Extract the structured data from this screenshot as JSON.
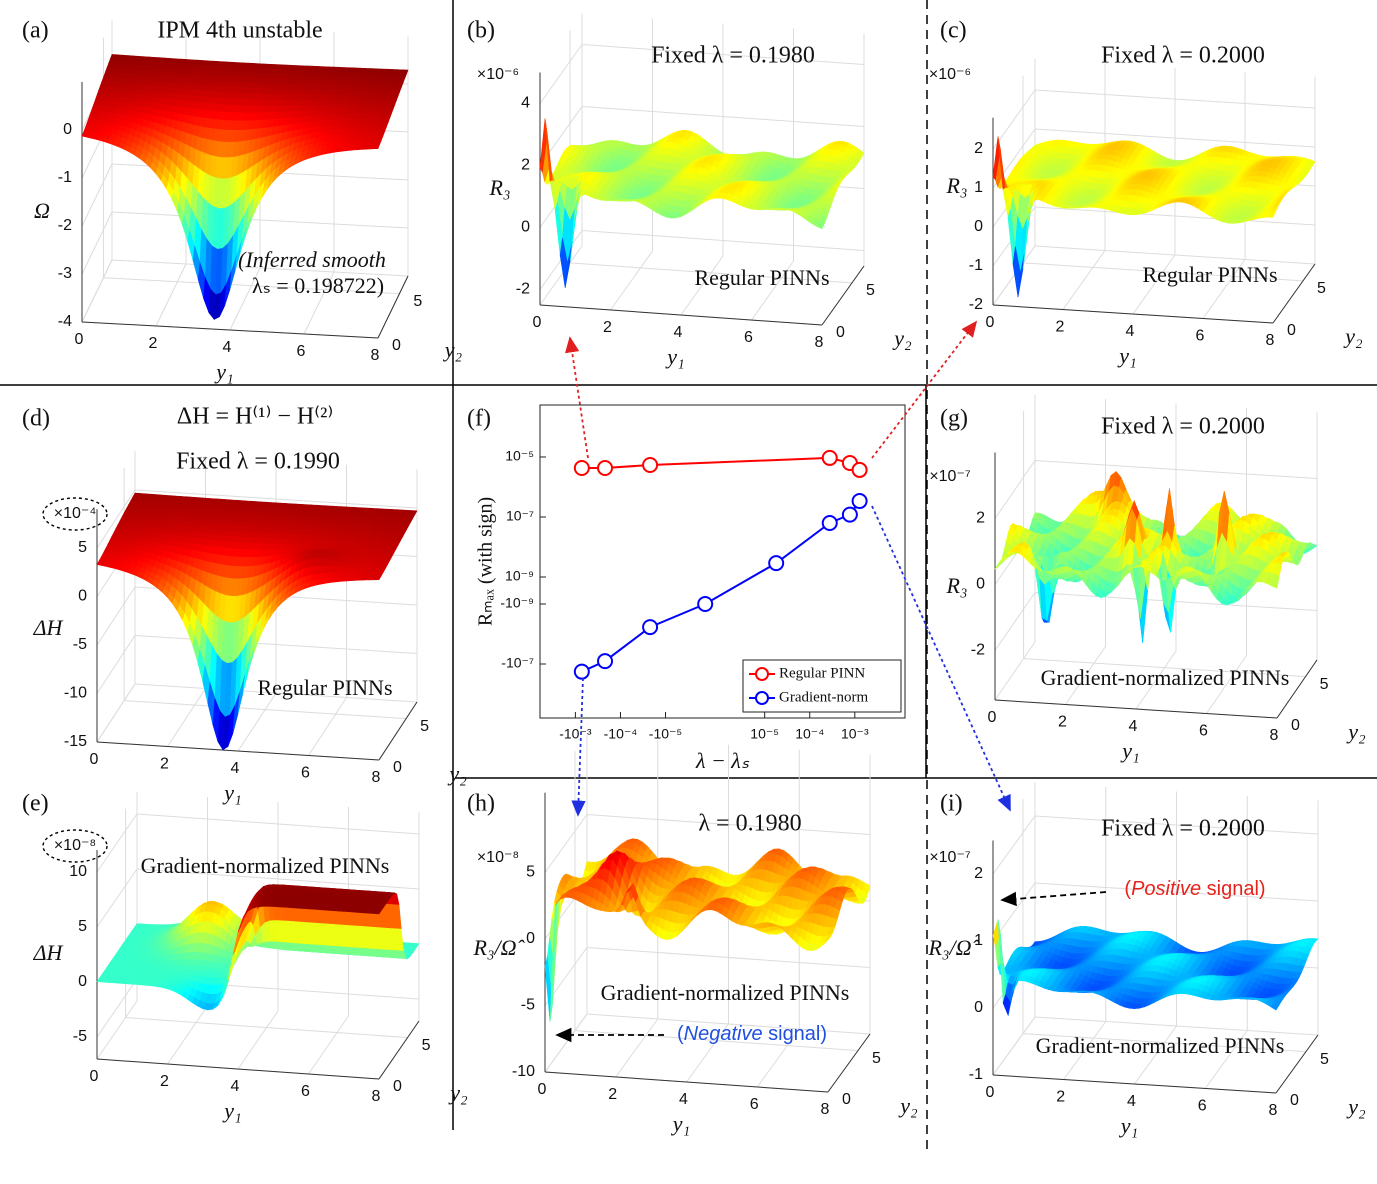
{
  "chart_data": [
    {
      "type": "surface3d",
      "panel": "(a)",
      "title": "IPM 4th unstable",
      "zlabel": "Ω",
      "xlabel": "y₁",
      "ylabel": "y₂",
      "xlim": [
        0,
        8
      ],
      "xticks": [
        0,
        2,
        4,
        6,
        8
      ],
      "ylim": [
        0,
        7
      ],
      "yticks": [
        0,
        5
      ],
      "zlim": [
        -4,
        1
      ],
      "zticks": [
        -4,
        -3,
        -2,
        -1,
        0
      ],
      "annotations": [
        "(Inferred smooth",
        "λₛ = 0.198722)"
      ],
      "colormap": "jet",
      "grid": true
    },
    {
      "type": "surface3d",
      "panel": "(b)",
      "title": "Fixed  λ = 0.1980",
      "exponent": "×10⁻⁶",
      "zlabel": "R₃",
      "xlabel": "y₁",
      "ylabel": "y₂",
      "xlim": [
        0,
        8
      ],
      "xticks": [
        0,
        2,
        4,
        6,
        8
      ],
      "ylim": [
        0,
        7
      ],
      "yticks": [
        0,
        5
      ],
      "zlim": [
        -2.5,
        5
      ],
      "zticks": [
        -2,
        0,
        2,
        4
      ],
      "annotations": [
        "Regular PINNs"
      ],
      "colormap": "jet",
      "grid": true
    },
    {
      "type": "surface3d",
      "panel": "(c)",
      "title": "Fixed  λ = 0.2000",
      "exponent": "×10⁻⁶",
      "zlabel": "R₃",
      "xlabel": "y₁",
      "ylabel": "y₂",
      "xlim": [
        0,
        8
      ],
      "xticks": [
        0,
        2,
        4,
        6,
        8
      ],
      "ylim": [
        0,
        7
      ],
      "yticks": [
        0,
        5
      ],
      "zlim": [
        -2,
        2.8
      ],
      "zticks": [
        -2,
        -1,
        0,
        1,
        2
      ],
      "annotations": [
        "Regular PINNs"
      ],
      "colormap": "jet",
      "grid": true
    },
    {
      "type": "surface3d",
      "panel": "(d)",
      "title": "ΔH = H⁽¹⁾ − H⁽²⁾",
      "subtitle": "Fixed  λ = 0.1990",
      "exponent": "×10⁻⁴",
      "zlabel": "ΔH",
      "xlabel": "y₁",
      "ylabel": "y₂",
      "xlim": [
        0,
        8
      ],
      "xticks": [
        0,
        2,
        4,
        6,
        8
      ],
      "ylim": [
        0,
        7
      ],
      "yticks": [
        0,
        5
      ],
      "zlim": [
        -15,
        9
      ],
      "zticks": [
        -15,
        -10,
        -5,
        0,
        5
      ],
      "annotations": [
        "Regular PINNs"
      ],
      "colormap": "jet",
      "grid": true
    },
    {
      "type": "surface3d",
      "panel": "(e)",
      "exponent": "×10⁻⁸",
      "zlabel": "ΔH",
      "xlabel": "y₁",
      "ylabel": "y₂",
      "xlim": [
        0,
        8
      ],
      "xticks": [
        0,
        2,
        4,
        6,
        8
      ],
      "ylim": [
        0,
        7
      ],
      "yticks": [
        0,
        5
      ],
      "zlim": [
        -7,
        12
      ],
      "zticks": [
        -5,
        0,
        5,
        10
      ],
      "annotations": [
        "Gradient-normalized PINNs"
      ],
      "colormap": "jet",
      "grid": true
    },
    {
      "type": "line",
      "panel": "(f)",
      "xlabel": "λ − λₛ",
      "ylabel": "Rₘₐₓ (with sign)",
      "xscale": "symlog",
      "xlinthresh": 1e-05,
      "yscale": "symlog",
      "ylinthresh": 1e-09,
      "xlim": [
        -0.0061,
        0.013
      ],
      "ylim": [
        -6.3e-06,
        0.00054
      ],
      "xticks": [
        {
          "value": -0.001,
          "label": "-10⁻³"
        },
        {
          "value": -0.0001,
          "label": "-10⁻⁴"
        },
        {
          "value": -1e-05,
          "label": "-10⁻⁵"
        },
        {
          "value": 1e-05,
          "label": "10⁻⁵"
        },
        {
          "value": 0.0001,
          "label": "10⁻⁴"
        },
        {
          "value": 0.001,
          "label": "10⁻³"
        }
      ],
      "yticks": [
        {
          "value": 1e-05,
          "label": "10⁻⁵"
        },
        {
          "value": 1e-07,
          "label": "10⁻⁷"
        },
        {
          "value": 1e-09,
          "label": "10⁻⁹"
        },
        {
          "value": -1e-09,
          "label": "-10⁻⁹"
        },
        {
          "value": -1e-07,
          "label": "-10⁻⁷"
        }
      ],
      "series": [
        {
          "name": "Regular PINN",
          "color": "#ff0000",
          "x": [
            -0.00072,
            -0.00022,
            -2.2e-05,
            0.000278,
            0.000778,
            0.001278
          ],
          "values": [
            4.3e-06,
            4.3e-06,
            5.4e-06,
            9.3e-06,
            6.3e-06,
            3.7e-06
          ]
        },
        {
          "name": "Gradient-norm",
          "color": "#0000ff",
          "x": [
            -0.00072,
            -0.00022,
            -2.2e-05,
            -2e-06,
            1.8e-05,
            0.000278,
            0.000778,
            0.001278
          ],
          "values": [
            -1.8e-07,
            -8e-08,
            -5.9e-09,
            -1e-09,
            2.9e-09,
            6.3e-08,
            1.2e-07,
            3.4e-07
          ]
        }
      ],
      "marker": "circle",
      "legend": "lower right"
    },
    {
      "type": "surface3d",
      "panel": "(g)",
      "title": "Fixed  λ = 0.2000",
      "exponent": "×10⁻⁷",
      "zlabel": "R₃",
      "xlabel": "y₁",
      "ylabel": "y₂",
      "xlim": [
        0,
        8
      ],
      "xticks": [
        0,
        2,
        4,
        6,
        8
      ],
      "ylim": [
        0,
        7
      ],
      "yticks": [
        0,
        5
      ],
      "zlim": [
        -3.5,
        4
      ],
      "zticks": [
        -2,
        0,
        2
      ],
      "annotations": [
        "Gradient-normalized PINNs"
      ],
      "colormap": "jet",
      "grid": true
    },
    {
      "type": "surface3d",
      "panel": "(h)",
      "title": "λ = 0.1980",
      "exponent": "×10⁻⁸",
      "zlabel": "R₃/Ω̂",
      "xlabel": "y₁",
      "ylabel": "y₂",
      "xlim": [
        0,
        8
      ],
      "xticks": [
        0,
        2,
        4,
        6,
        8
      ],
      "ylim": [
        0,
        7
      ],
      "yticks": [
        0,
        5
      ],
      "zlim": [
        -10,
        11
      ],
      "zticks": [
        -10,
        -5,
        0,
        5
      ],
      "annotations": [
        "Gradient-normalized PINNs"
      ],
      "signal_note": [
        "(",
        "Negative",
        " signal)"
      ],
      "signal_color": "#1f4fe0",
      "colormap": "jet",
      "grid": true
    },
    {
      "type": "surface3d",
      "panel": "(i)",
      "title": "Fixed  λ = 0.2000",
      "exponent": "×10⁻⁷",
      "zlabel": "R₃/Ω̂",
      "xlabel": "y₁",
      "ylabel": "y₂",
      "xlim": [
        0,
        8
      ],
      "xticks": [
        0,
        2,
        4,
        6,
        8
      ],
      "ylim": [
        0,
        7
      ],
      "yticks": [
        0,
        5
      ],
      "zlim": [
        -1,
        2.5
      ],
      "zticks": [
        -1,
        0,
        1,
        2
      ],
      "annotations": [
        "Gradient-normalized PINNs"
      ],
      "signal_note": [
        "(",
        "Positive",
        " signal)"
      ],
      "signal_color": "#e8221b",
      "colormap": "jet",
      "grid": true
    }
  ]
}
